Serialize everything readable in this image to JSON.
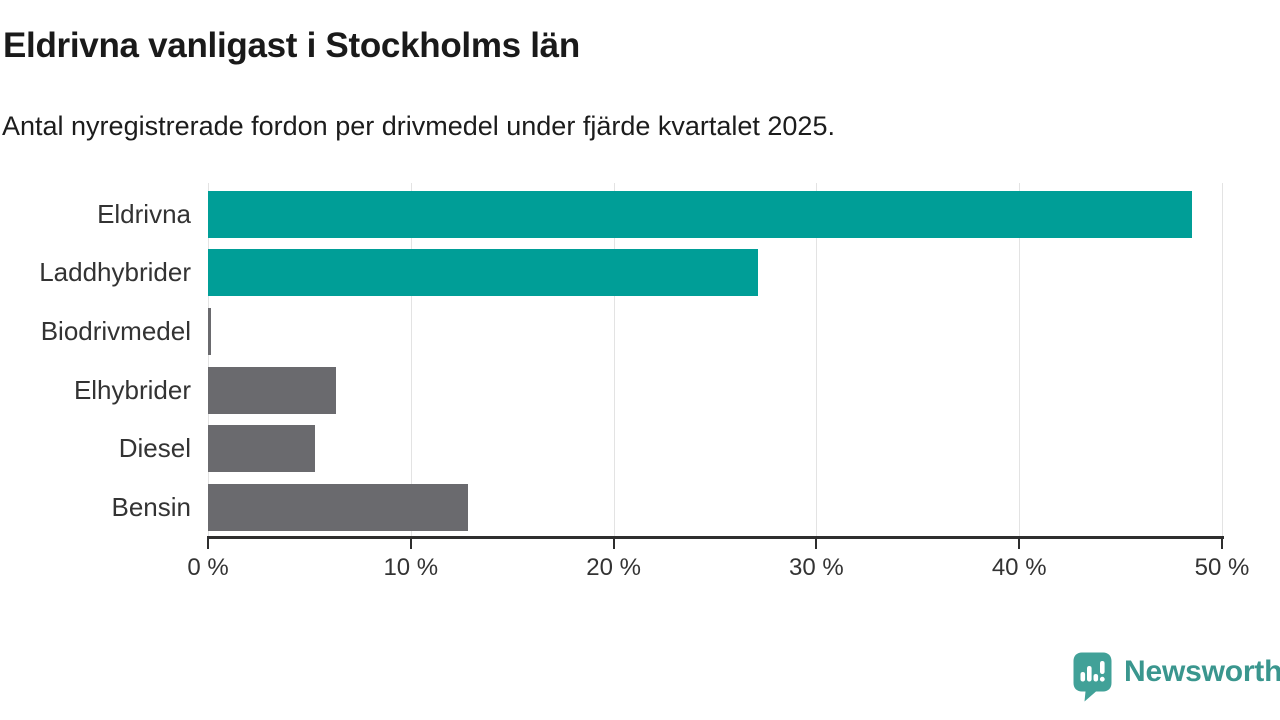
{
  "chart": {
    "title": "Eldrivna vanligast i Stockholms län",
    "subtitle": "Antal nyregistrerade fordon per drivmedel under fjärde kvartalet 2025."
  },
  "chart_data": {
    "type": "bar",
    "orientation": "horizontal",
    "title": "Eldrivna vanligast i Stockholms län",
    "subtitle": "Antal nyregistrerade fordon per drivmedel under fjärde kvartalet 2025.",
    "categories": [
      "Eldrivna",
      "Laddhybrider",
      "Biodrivmedel",
      "Elhybrider",
      "Diesel",
      "Bensin"
    ],
    "values": [
      48.5,
      27.1,
      0.15,
      6.3,
      5.3,
      12.8
    ],
    "unit": "%",
    "bar_colors": [
      "#009e97",
      "#009e97",
      "#6a6a6e",
      "#6a6a6e",
      "#6a6a6e",
      "#6a6a6e"
    ],
    "xlim": [
      0,
      50
    ],
    "x_ticks": [
      0,
      10,
      20,
      30,
      40,
      50
    ],
    "x_tick_labels": [
      "0 %",
      "10 %",
      "20 %",
      "30 %",
      "40 %",
      "50 %"
    ],
    "grid": "vertical",
    "legend": "none"
  },
  "footer": {
    "brand": "Newsworthy",
    "brand_color": "#3a968e",
    "icon": "newsworthy-speech-bubble-barchart-icon",
    "icon_color": "#41a198"
  },
  "colors": {
    "teal": "#009e97",
    "gray": "#6a6a6e",
    "gridline": "#e3e3e3",
    "axis": "#2e2e2e",
    "text": "#333333"
  }
}
